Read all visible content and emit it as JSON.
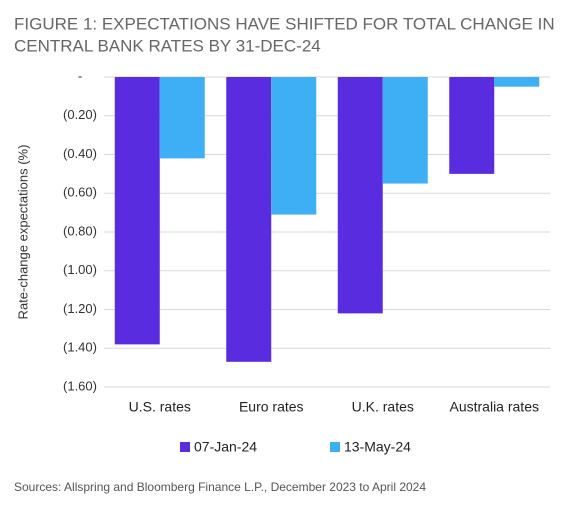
{
  "chart_data": {
    "type": "bar",
    "title": [
      "FIGURE 1: EXPECTATIONS HAVE SHIFTED FOR TOTAL CHANGE IN",
      "CENTRAL BANK RATES BY 31-DEC-24"
    ],
    "y_label": "Rate-change expectations (%)",
    "source": "Sources: Allspring and Bloomberg Finance L.P., December 2023 to April 2024",
    "categories": [
      "U.S. rates",
      "Euro rates",
      "U.K. rates",
      "Australia rates"
    ],
    "series": [
      {
        "name": "07-Jan-24",
        "color": "#5a2ce0",
        "values": [
          -1.38,
          -1.47,
          -1.22,
          -0.5
        ]
      },
      {
        "name": "13-May-24",
        "color": "#3eaef5",
        "values": [
          -0.42,
          -0.71,
          -0.55,
          -0.05
        ]
      }
    ],
    "ylim": [
      -1.6,
      0
    ],
    "yticks": [
      {
        "value": 0,
        "label": "-"
      },
      {
        "value": -0.2,
        "label": "(0.20)"
      },
      {
        "value": -0.4,
        "label": "(0.40)"
      },
      {
        "value": -0.6,
        "label": "(0.60)"
      },
      {
        "value": -0.8,
        "label": "(0.80)"
      },
      {
        "value": -1.0,
        "label": "(1.00)"
      },
      {
        "value": -1.2,
        "label": "(1.20)"
      },
      {
        "value": -1.4,
        "label": "(1.40)"
      },
      {
        "value": -1.6,
        "label": "(1.60)"
      }
    ],
    "grid": true,
    "legend": "bottom"
  }
}
